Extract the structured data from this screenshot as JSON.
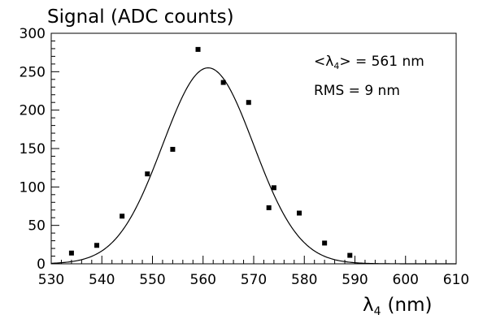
{
  "chart_data": {
    "type": "scatter",
    "title": "Signal (ADC counts)",
    "xlabel": "λ",
    "xlabel_subscript": "4",
    "xlabel_unit": "(nm)",
    "xlim": [
      530,
      610
    ],
    "ylim": [
      0,
      300
    ],
    "xticks": [
      530,
      540,
      550,
      560,
      570,
      580,
      590,
      600,
      610
    ],
    "yticks": [
      0,
      50,
      100,
      150,
      200,
      250,
      300
    ],
    "grid": false,
    "legend": "none",
    "annotations": {
      "mean": {
        "prefix": "<λ",
        "subscript": "4",
        "suffix": "> = 561 nm"
      },
      "rms": "RMS = 9 nm"
    },
    "series": [
      {
        "kind": "points",
        "x": [
          534,
          539,
          544,
          549,
          554,
          559,
          564,
          569,
          573,
          574,
          579,
          584,
          589
        ],
        "y": [
          14,
          24,
          62,
          117,
          149,
          279,
          236,
          210,
          73,
          99,
          66,
          27,
          11
        ]
      },
      {
        "kind": "curve",
        "function": "gaussian",
        "amplitude": 255,
        "mean": 561,
        "sigma": 9
      }
    ]
  }
}
